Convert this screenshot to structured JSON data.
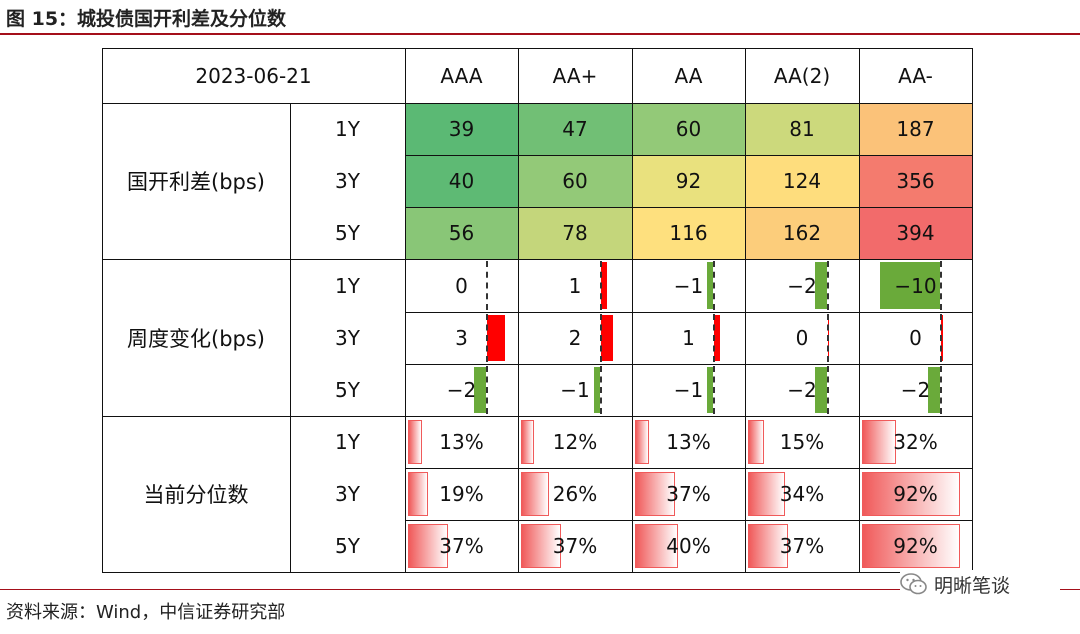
{
  "title": "图 15：城投债国开利差及分位数",
  "source": "资料来源：Wind，中信证券研究部",
  "watermark": "明晰笔谈",
  "chart_data": {
    "type": "table",
    "date": "2023-06-21",
    "columns": [
      "AAA",
      "AA+",
      "AA",
      "AA(2)",
      "AA-"
    ],
    "tenors": [
      "1Y",
      "3Y",
      "5Y"
    ],
    "sections": [
      {
        "key": "spread",
        "label": "国开利差(bps)",
        "rows": [
          {
            "tenor": "1Y",
            "values": [
              39,
              47,
              60,
              81,
              187
            ],
            "display": [
              "39",
              "47",
              "60",
              "81",
              "187"
            ]
          },
          {
            "tenor": "3Y",
            "values": [
              40,
              60,
              92,
              124,
              356
            ],
            "display": [
              "40",
              "60",
              "92",
              "124",
              "356"
            ]
          },
          {
            "tenor": "5Y",
            "values": [
              56,
              78,
              116,
              162,
              394
            ],
            "display": [
              "56",
              "78",
              "116",
              "162",
              "394"
            ]
          }
        ]
      },
      {
        "key": "change",
        "label": "周度变化(bps)",
        "rows": [
          {
            "tenor": "1Y",
            "values": [
              0,
              1,
              -1,
              -2,
              -10
            ],
            "display": [
              "0",
              "1",
              "−1",
              "−2",
              "−10"
            ]
          },
          {
            "tenor": "3Y",
            "values": [
              3,
              2,
              1,
              0.2,
              0.2
            ],
            "display": [
              "3",
              "2",
              "1",
              "0",
              "0"
            ]
          },
          {
            "tenor": "5Y",
            "values": [
              -2,
              -1,
              -1,
              -2,
              -2
            ],
            "display": [
              "−2",
              "−1",
              "−1",
              "−2",
              "−2"
            ]
          }
        ]
      },
      {
        "key": "percentile",
        "label": "当前分位数",
        "rows": [
          {
            "tenor": "1Y",
            "values": [
              13,
              12,
              13,
              15,
              32
            ],
            "display": [
              "13%",
              "12%",
              "13%",
              "15%",
              "32%"
            ]
          },
          {
            "tenor": "3Y",
            "values": [
              19,
              26,
              37,
              34,
              92
            ],
            "display": [
              "19%",
              "26%",
              "37%",
              "34%",
              "92%"
            ]
          },
          {
            "tenor": "5Y",
            "values": [
              37,
              37,
              40,
              37,
              92
            ],
            "display": [
              "37%",
              "37%",
              "40%",
              "37%",
              "92%"
            ]
          }
        ]
      }
    ],
    "colors": {
      "heat_low": "#5bb974",
      "heat_mid": "#ffe77f",
      "heat_high": "#f26b6b",
      "bar_positive": "#ff0000",
      "bar_negative": "#6aaa3a",
      "bar_percentile": "#f05a5a"
    }
  }
}
